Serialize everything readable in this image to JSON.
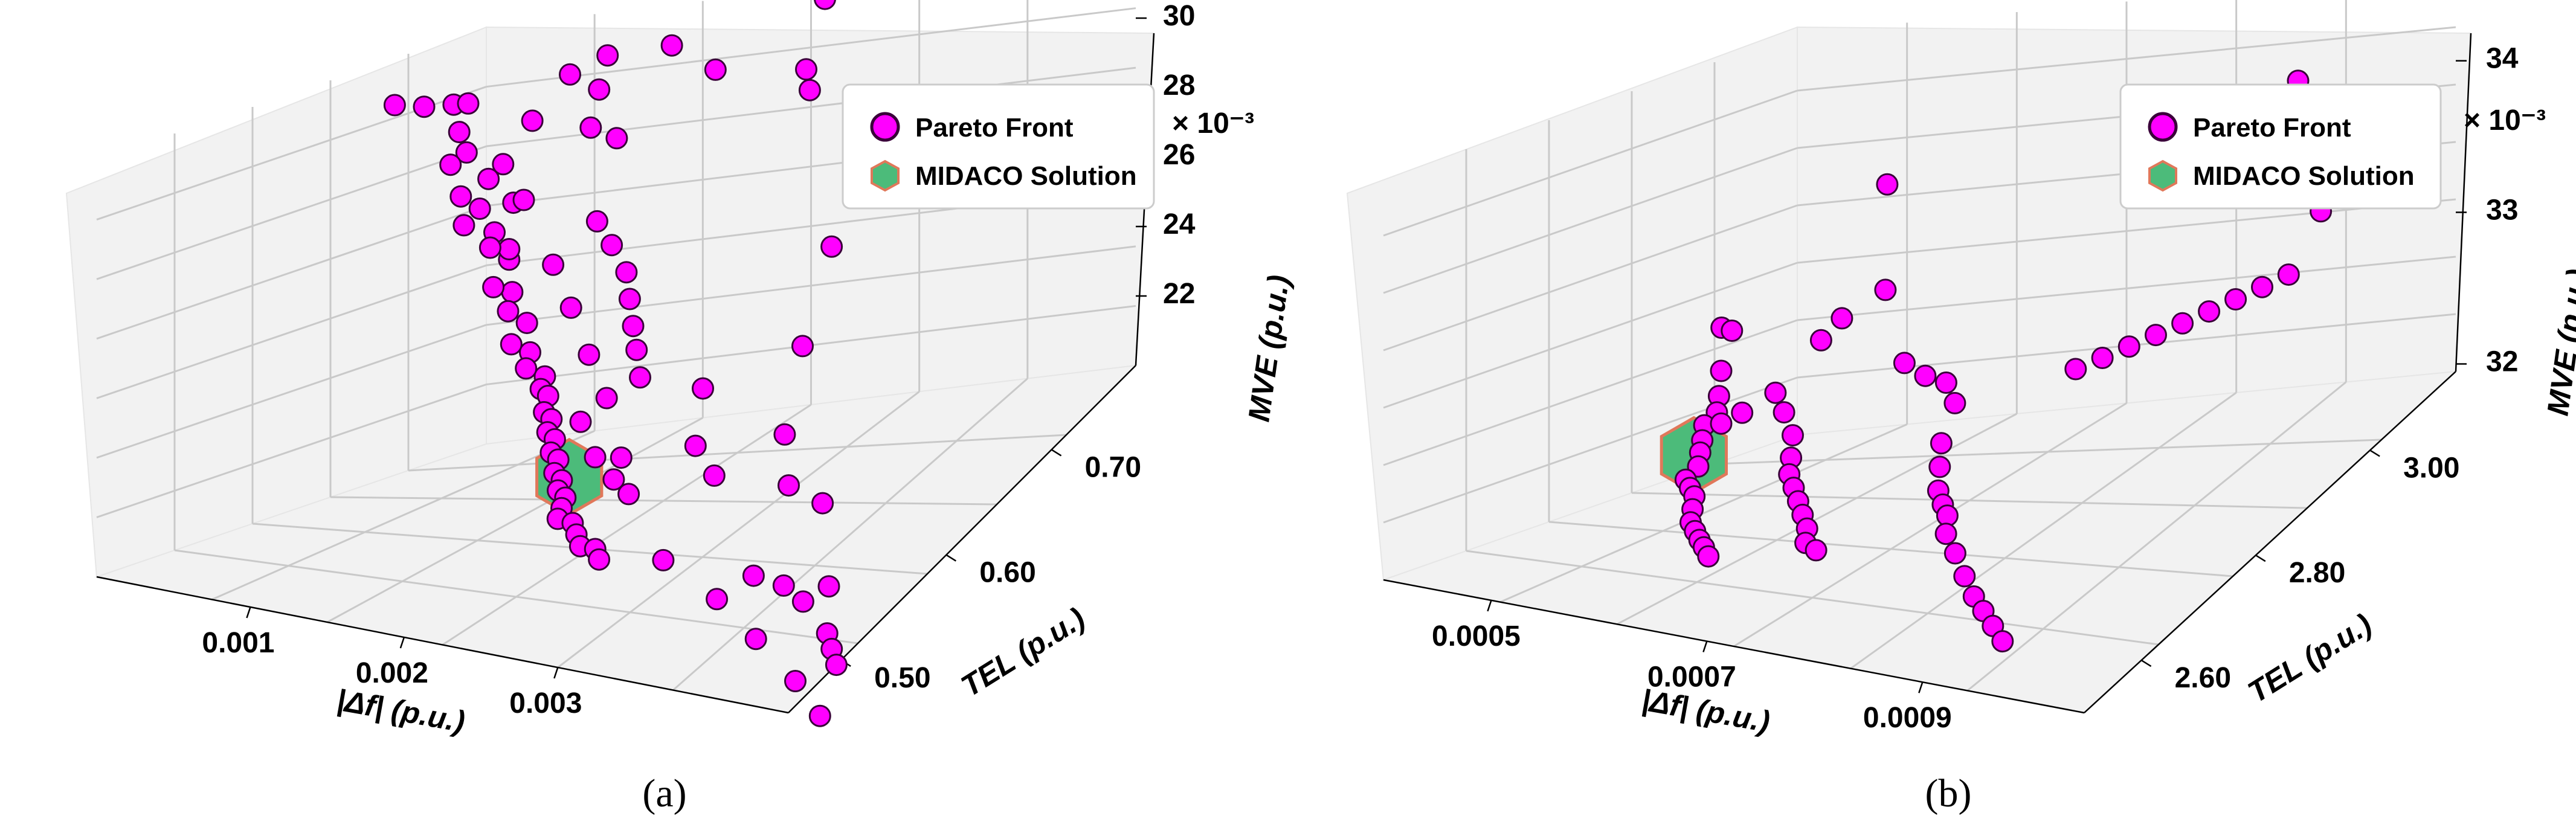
{
  "colors": {
    "pareto_fill": "#ff00ff",
    "pareto_edge": "#3a003a",
    "midaco_fill": "#4cbb7a",
    "midaco_edge": "#e0785a"
  },
  "chart_data": [
    {
      "type": "scatter3d",
      "caption": "(a)",
      "xlabel": "|Δf| (p.u.)",
      "ylabel": "TEL (p.u.)",
      "zlabel": "MVE (p.u.)",
      "z_multiplier": "× 10⁻³",
      "xlim": [
        0.0,
        0.0045
      ],
      "ylim": [
        0.45,
        0.78
      ],
      "zlim": [
        20.0,
        32.0
      ],
      "xticks": [
        0.001,
        0.002,
        0.003
      ],
      "xticklabels": [
        "0.001",
        "0.002",
        "0.003"
      ],
      "yticks": [
        0.5,
        0.6,
        0.7
      ],
      "yticklabels": [
        "0.50",
        "0.60",
        "0.70"
      ],
      "zticks": [
        22,
        24,
        26,
        28,
        30
      ],
      "zticklabels": [
        "22",
        "24",
        "26",
        "28",
        "30"
      ],
      "legend": {
        "position": "top-right",
        "entries": [
          "Pareto Front",
          "MIDACO Solution"
        ]
      },
      "series": [
        {
          "name": "Pareto Front",
          "marker": "circle",
          "points": [
            [
              0.0001,
              0.74,
              30.2
            ],
            [
              0.0002,
              0.74,
              30.2
            ],
            [
              0.00022,
              0.7,
              30.6
            ],
            [
              0.00018,
              0.68,
              30.9
            ],
            [
              0.0003,
              0.72,
              29.6
            ],
            [
              0.00035,
              0.72,
              29.0
            ],
            [
              0.0004,
              0.7,
              28.9
            ],
            [
              0.0005,
              0.72,
              28.2
            ],
            [
              0.00055,
              0.69,
              28.1
            ],
            [
              0.0006,
              0.7,
              27.6
            ],
            [
              0.00065,
              0.68,
              27.4
            ],
            [
              0.0007,
              0.7,
              26.9
            ],
            [
              0.00075,
              0.69,
              26.6
            ],
            [
              0.0008,
              0.7,
              26.1
            ],
            [
              0.00085,
              0.68,
              25.6
            ],
            [
              0.0009,
              0.69,
              25.3
            ],
            [
              0.00095,
              0.68,
              24.9
            ],
            [
              0.001,
              0.69,
              24.4
            ],
            [
              0.00105,
              0.67,
              24.1
            ],
            [
              0.0011,
              0.68,
              23.7
            ],
            [
              0.00115,
              0.67,
              23.4
            ],
            [
              0.0012,
              0.68,
              23.0
            ],
            [
              0.00125,
              0.67,
              22.8
            ],
            [
              0.0013,
              0.67,
              22.6
            ],
            [
              0.00135,
              0.66,
              22.3
            ],
            [
              0.0014,
              0.66,
              22.1
            ],
            [
              0.00145,
              0.65,
              21.9
            ],
            [
              0.0015,
              0.65,
              21.7
            ],
            [
              0.00155,
              0.64,
              21.5
            ],
            [
              0.0016,
              0.64,
              21.3
            ],
            [
              0.00165,
              0.63,
              21.1
            ],
            [
              0.0017,
              0.63,
              20.9
            ],
            [
              0.00175,
              0.62,
              20.8
            ],
            [
              0.0018,
              0.62,
              20.6
            ],
            [
              0.00185,
              0.61,
              20.5
            ],
            [
              0.0019,
              0.6,
              20.4
            ],
            [
              0.002,
              0.6,
              20.3
            ],
            [
              0.0021,
              0.59,
              20.2
            ],
            [
              0.0022,
              0.58,
              20.1
            ],
            [
              0.0023,
              0.58,
              20.05
            ],
            [
              0.0024,
              0.57,
              20.0
            ],
            [
              0.0008,
              0.72,
              29.8
            ],
            [
              0.0009,
              0.74,
              30.8
            ],
            [
              0.001,
              0.76,
              31.0
            ],
            [
              0.0011,
              0.74,
              30.3
            ],
            [
              0.0012,
              0.72,
              29.5
            ],
            [
              0.0013,
              0.73,
              29.0
            ],
            [
              0.0009,
              0.7,
              27.8
            ],
            [
              0.0014,
              0.7,
              27.1
            ],
            [
              0.0015,
              0.7,
              26.4
            ],
            [
              0.0016,
              0.7,
              25.6
            ],
            [
              0.0017,
              0.69,
              25.0
            ],
            [
              0.0018,
              0.68,
              24.4
            ],
            [
              0.0019,
              0.67,
              23.9
            ],
            [
              0.002,
              0.66,
              23.3
            ],
            [
              0.0016,
              0.74,
              31.4
            ],
            [
              0.0019,
              0.74,
              30.6
            ],
            [
              0.0025,
              0.76,
              32.0
            ],
            [
              0.0026,
              0.73,
              30.6
            ],
            [
              0.0027,
              0.72,
              30.2
            ],
            [
              0.003,
              0.7,
              26.1
            ],
            [
              0.0025,
              0.65,
              23.2
            ],
            [
              0.0026,
              0.63,
              22.0
            ],
            [
              0.0028,
              0.62,
              21.4
            ],
            [
              0.0031,
              0.66,
              24.2
            ],
            [
              0.0032,
              0.63,
              22.4
            ],
            [
              0.0033,
              0.62,
              21.2
            ],
            [
              0.0036,
              0.61,
              21.0
            ],
            [
              0.0035,
              0.56,
              20.2
            ],
            [
              0.0037,
              0.56,
              20.0
            ],
            [
              0.0039,
              0.55,
              19.9
            ],
            [
              0.004,
              0.56,
              20.1
            ],
            [
              0.0042,
              0.53,
              19.7
            ],
            [
              0.0043,
              0.52,
              19.6
            ],
            [
              0.0044,
              0.51,
              19.5
            ],
            [
              0.0042,
              0.5,
              19.2
            ],
            [
              0.0045,
              0.48,
              19.0
            ],
            [
              0.0038,
              0.52,
              19.6
            ],
            [
              0.0034,
              0.54,
              20.0
            ],
            [
              0.0029,
              0.56,
              20.4
            ],
            [
              0.0023,
              0.61,
              21.0
            ],
            [
              0.0021,
              0.63,
              21.6
            ],
            [
              0.0022,
              0.61,
              21.4
            ],
            [
              0.002,
              0.62,
              21.8
            ],
            [
              0.00175,
              0.64,
              22.4
            ],
            [
              0.00185,
              0.65,
              22.9
            ],
            [
              0.0015,
              0.68,
              23.6
            ],
            [
              0.0013,
              0.69,
              24.8
            ],
            [
              0.0011,
              0.7,
              25.9
            ],
            [
              0.0008,
              0.7,
              26.4
            ],
            [
              0.00075,
              0.71,
              27.6
            ],
            [
              0.0006,
              0.72,
              28.6
            ]
          ]
        },
        {
          "name": "MIDACO Solution",
          "marker": "hexagon",
          "points": [
            [
              0.00175,
              0.63,
              21.0
            ]
          ]
        }
      ]
    },
    {
      "type": "scatter3d",
      "caption": "(b)",
      "xlabel": "|Δf| (p.u.)",
      "ylabel": "TEL (p.u.)",
      "zlabel": "MVE (p.u.)",
      "z_multiplier": "× 10⁻³",
      "xlim": [
        0.0004,
        0.00105
      ],
      "ylim": [
        2.5,
        3.15
      ],
      "zlim": [
        31.95,
        34.6
      ],
      "xticks": [
        0.0005,
        0.0007,
        0.0009
      ],
      "xticklabels": [
        "0.0005",
        "0.0007",
        "0.0009"
      ],
      "yticks": [
        2.6,
        2.8,
        3.0
      ],
      "yticklabels": [
        "2.60",
        "2.80",
        "3.00"
      ],
      "zticks": [
        32,
        33,
        34
      ],
      "zticklabels": [
        "32",
        "33",
        "34"
      ],
      "legend": {
        "position": "top-right",
        "entries": [
          "Pareto Front",
          "MIDACO Solution"
        ]
      },
      "series": [
        {
          "name": "Pareto Front",
          "marker": "circle",
          "points": [
            [
              0.00045,
              2.95,
              32.95
            ],
            [
              0.00046,
              2.95,
              32.93
            ],
            [
              0.00048,
              2.9,
              32.75
            ],
            [
              0.00049,
              2.88,
              32.62
            ],
            [
              0.0005,
              2.86,
              32.55
            ],
            [
              0.0005,
              2.84,
              32.5
            ],
            [
              0.00051,
              2.82,
              32.44
            ],
            [
              0.00052,
              2.8,
              32.4
            ],
            [
              0.00053,
              2.78,
              32.35
            ],
            [
              0.00053,
              2.76,
              32.3
            ],
            [
              0.00054,
              2.75,
              32.27
            ],
            [
              0.00055,
              2.74,
              32.24
            ],
            [
              0.00056,
              2.72,
              32.2
            ],
            [
              0.00057,
              2.7,
              32.16
            ],
            [
              0.00058,
              2.69,
              32.13
            ],
            [
              0.00059,
              2.68,
              32.1
            ],
            [
              0.0006,
              2.67,
              32.08
            ],
            [
              0.00061,
              2.66,
              32.05
            ],
            [
              0.00054,
              2.8,
              32.6
            ],
            [
              0.00056,
              2.8,
              32.68
            ],
            [
              0.00058,
              2.82,
              32.78
            ],
            [
              0.0006,
              2.8,
              32.7
            ],
            [
              0.00062,
              2.78,
              32.6
            ],
            [
              0.00063,
              2.76,
              32.5
            ],
            [
              0.00064,
              2.74,
              32.44
            ],
            [
              0.00065,
              2.73,
              32.38
            ],
            [
              0.00066,
              2.72,
              32.32
            ],
            [
              0.00067,
              2.71,
              32.26
            ],
            [
              0.00068,
              2.7,
              32.2
            ],
            [
              0.00069,
              2.68,
              32.16
            ],
            [
              0.0007,
              2.68,
              32.12
            ],
            [
              0.0006,
              2.86,
              33.05
            ],
            [
              0.00062,
              2.86,
              33.2
            ],
            [
              0.00065,
              2.88,
              33.35
            ],
            [
              0.00064,
              2.9,
              34.0
            ],
            [
              0.00068,
              2.86,
              32.92
            ],
            [
              0.0007,
              2.86,
              32.84
            ],
            [
              0.00072,
              2.86,
              32.8
            ],
            [
              0.00074,
              2.84,
              32.72
            ],
            [
              0.00075,
              2.8,
              32.56
            ],
            [
              0.00076,
              2.78,
              32.46
            ],
            [
              0.00077,
              2.76,
              32.36
            ],
            [
              0.00078,
              2.75,
              32.3
            ],
            [
              0.00079,
              2.74,
              32.26
            ],
            [
              0.0008,
              2.72,
              32.2
            ],
            [
              0.00082,
              2.7,
              32.14
            ],
            [
              0.00084,
              2.68,
              32.06
            ],
            [
              0.00086,
              2.66,
              32.0
            ],
            [
              0.00088,
              2.64,
              31.98
            ],
            [
              0.0009,
              2.62,
              31.96
            ],
            [
              0.00092,
              2.6,
              31.94
            ],
            [
              0.00085,
              2.85,
              32.95
            ],
            [
              0.00087,
              2.86,
              33.0
            ],
            [
              0.00089,
              2.87,
              33.05
            ],
            [
              0.00091,
              2.88,
              33.1
            ],
            [
              0.00093,
              2.89,
              33.15
            ],
            [
              0.00095,
              2.9,
              33.2
            ],
            [
              0.00097,
              2.91,
              33.25
            ],
            [
              0.00099,
              2.92,
              33.3
            ],
            [
              0.00101,
              2.93,
              33.35
            ],
            [
              0.00098,
              3.0,
              34.4
            ],
            [
              0.00103,
              2.95,
              33.7
            ]
          ]
        },
        {
          "name": "MIDACO Solution",
          "marker": "hexagon",
          "points": [
            [
              0.00049,
              2.84,
              32.3
            ]
          ]
        }
      ]
    }
  ]
}
